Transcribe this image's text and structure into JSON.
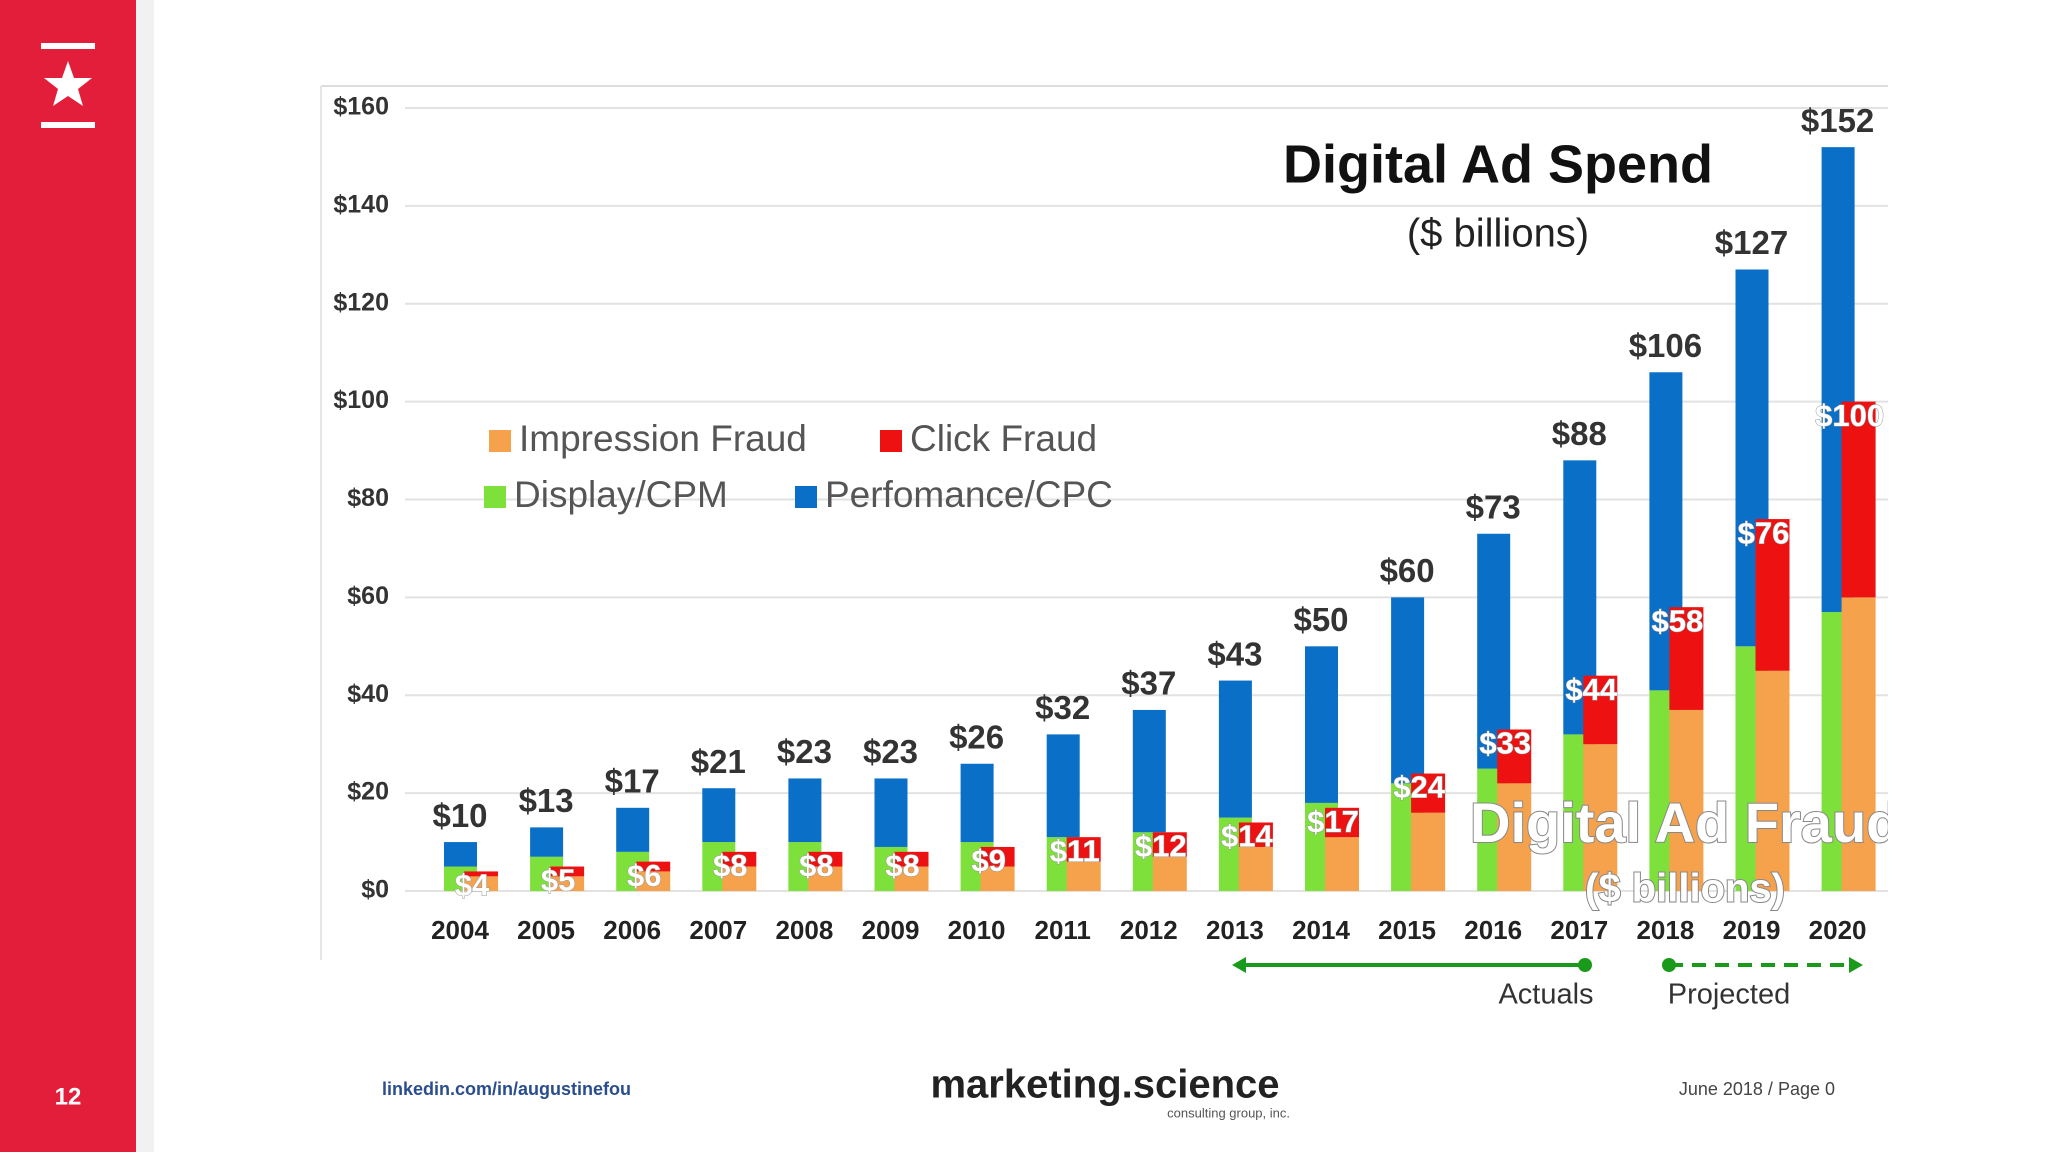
{
  "slide_number": "12",
  "footer": {
    "left": "linkedin.com/in/augustinefou",
    "brand": "marketing.science",
    "brand_sub": "consulting group, inc.",
    "right": "June 2018 / Page 0"
  },
  "chart_data": {
    "type": "bar",
    "title": "Digital Ad Spend",
    "subtitle": "($ billions)",
    "fraud_title": "Digital Ad Fraud",
    "fraud_subtitle": "($ billions)",
    "categories": [
      "2004",
      "2005",
      "2006",
      "2007",
      "2008",
      "2009",
      "2010",
      "2011",
      "2012",
      "2013",
      "2014",
      "2015",
      "2016",
      "2017",
      "2018",
      "2019",
      "2020"
    ],
    "series": [
      {
        "name": "Display/CPM",
        "color": "#7ee03a",
        "stack": "spend",
        "values": [
          5,
          7,
          8,
          10,
          10,
          9,
          10,
          11,
          12,
          15,
          18,
          22,
          25,
          32,
          41,
          50,
          57
        ]
      },
      {
        "name": "Perfomance/CPC",
        "color": "#0a6fc6",
        "stack": "spend",
        "values": [
          5,
          6,
          9,
          11,
          13,
          14,
          16,
          21,
          25,
          28,
          32,
          38,
          48,
          56,
          65,
          77,
          95
        ]
      },
      {
        "name": "Impression Fraud",
        "color": "#f6a24c",
        "stack": "fraud",
        "values": [
          3,
          3,
          4,
          5,
          5,
          5,
          5,
          6,
          7,
          9,
          11,
          16,
          22,
          30,
          37,
          45,
          60
        ]
      },
      {
        "name": "Click Fraud",
        "color": "#ee1111",
        "stack": "fraud",
        "values": [
          1,
          2,
          2,
          3,
          3,
          3,
          4,
          5,
          5,
          5,
          6,
          8,
          11,
          14,
          21,
          31,
          40
        ]
      }
    ],
    "spend_labels": [
      "$10",
      "$13",
      "$17",
      "$21",
      "$23",
      "$23",
      "$26",
      "$32",
      "$37",
      "$43",
      "$50",
      "$60",
      "$73",
      "$88",
      "$106",
      "$127",
      "$152"
    ],
    "fraud_labels": [
      "$4",
      "$5",
      "$6",
      "$8",
      "$8",
      "$8",
      "$9",
      "$11",
      "$12",
      "$14",
      "$17",
      "$24",
      "$33",
      "$44",
      "$58",
      "$76",
      "$100"
    ],
    "ylim": [
      0,
      160
    ],
    "yticks": [
      {
        "value": 0,
        "label": "$0"
      },
      {
        "value": 20,
        "label": "$20"
      },
      {
        "value": 40,
        "label": "$40"
      },
      {
        "value": 60,
        "label": "$60"
      },
      {
        "value": 80,
        "label": "$80"
      },
      {
        "value": 100,
        "label": "$100"
      },
      {
        "value": 120,
        "label": "$120"
      },
      {
        "value": 140,
        "label": "$140"
      },
      {
        "value": 160,
        "label": "$160"
      }
    ],
    "grid": true,
    "actuals_label": "Actuals",
    "projected_label": "Projected"
  }
}
